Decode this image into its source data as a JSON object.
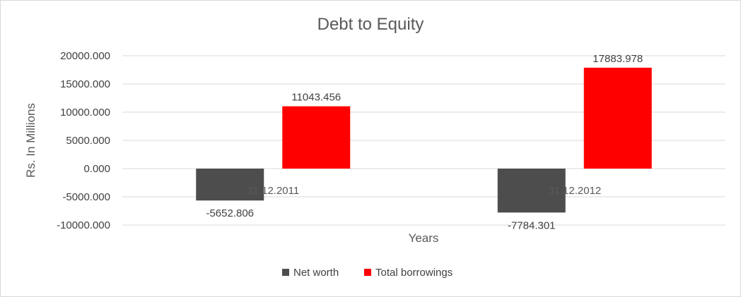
{
  "chart_data": {
    "type": "bar",
    "title": "Debt to Equity",
    "xlabel": "Years",
    "ylabel": "Rs. In Millions",
    "categories": [
      "31.12.2011",
      "31.12.2012"
    ],
    "series": [
      {
        "name": "Net worth",
        "values": [
          -5652.806,
          -7784.301
        ],
        "labels": [
          "-5652.806",
          "-7784.301"
        ],
        "color": "#4d4d4d"
      },
      {
        "name": "Total borrowings",
        "values": [
          11043.456,
          17883.978
        ],
        "labels": [
          "11043.456",
          "17883.978"
        ],
        "color": "#ff0000"
      }
    ],
    "ylim": [
      -10000,
      20000
    ],
    "yticks": [
      20000,
      15000,
      10000,
      5000,
      0,
      -5000,
      -10000
    ],
    "ytick_labels": [
      "20000.000",
      "15000.000",
      "10000.000",
      "5000.000",
      "0.000",
      "-5000.000",
      "-10000.000"
    ],
    "grid": true,
    "legend_position": "bottom"
  }
}
